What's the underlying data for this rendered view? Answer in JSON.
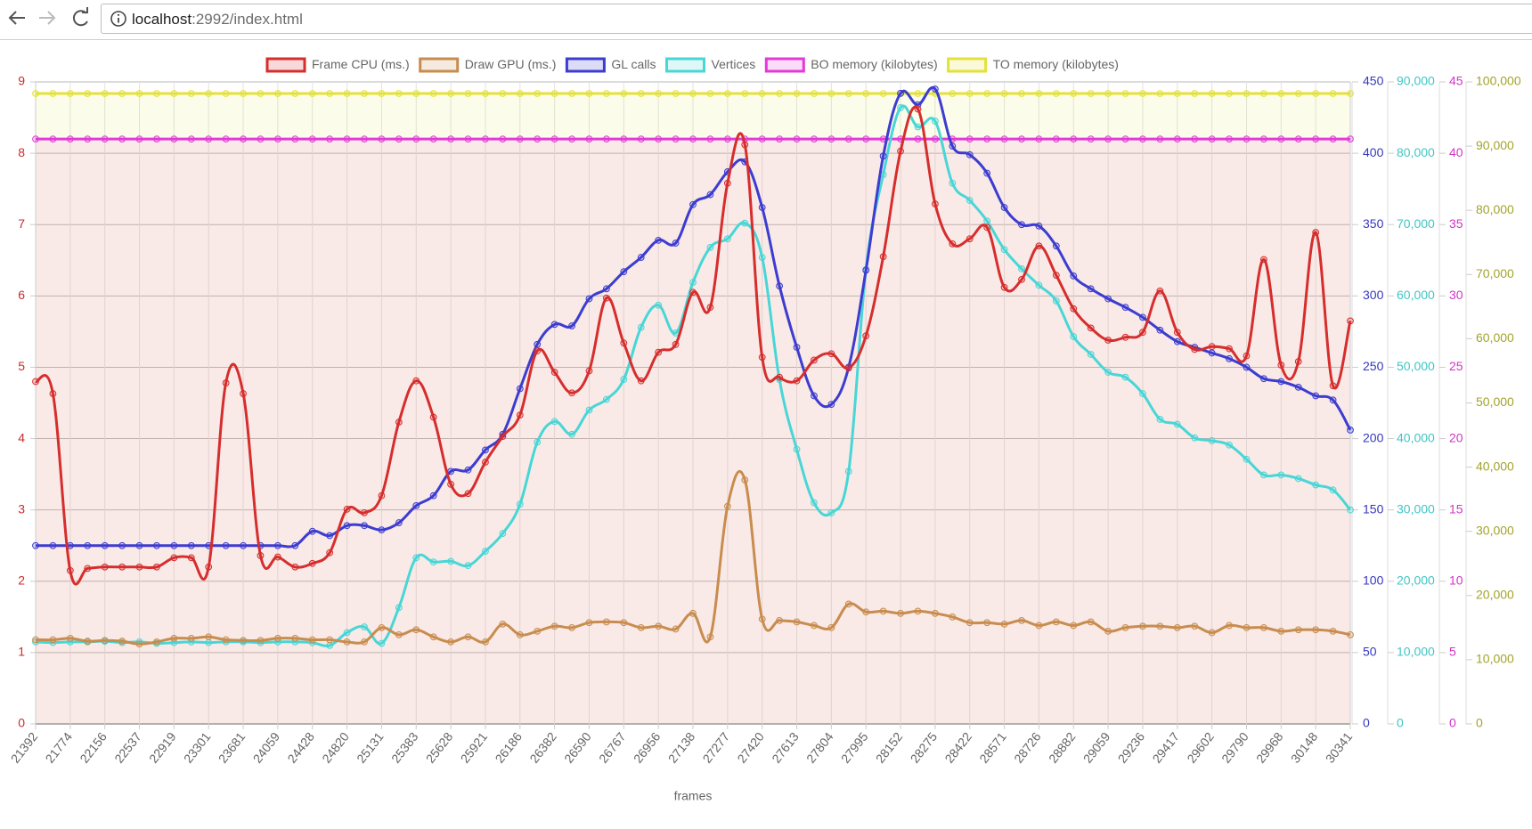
{
  "browser": {
    "host": "localhost",
    "path": ":2992/index.html"
  },
  "chart_data": {
    "type": "line",
    "x_label": "frames",
    "legend": "top",
    "grid": true,
    "categories": [
      "21392",
      null,
      "21774",
      null,
      "22156",
      null,
      "22537",
      null,
      "22919",
      null,
      "23301",
      null,
      "23681",
      null,
      "24059",
      null,
      "24428",
      null,
      "24820",
      null,
      "25131",
      null,
      "25383",
      null,
      "25628",
      null,
      "25921",
      null,
      "26186",
      null,
      "26382",
      null,
      "26590",
      null,
      "26767",
      null,
      "26956",
      null,
      "27138",
      null,
      "27277",
      null,
      "27420",
      null,
      "27613",
      null,
      "27804",
      null,
      "27995",
      null,
      "28152",
      null,
      "28275",
      null,
      "28422",
      null,
      "28571",
      null,
      "28726",
      null,
      "28882",
      null,
      "29059",
      null,
      "29236",
      null,
      "29417",
      null,
      "29602",
      null,
      "29790",
      null,
      "29968",
      null,
      "30148",
      null,
      "30341"
    ],
    "ylim": [
      0,
      9
    ],
    "yticks": [
      0,
      1,
      2,
      3,
      4,
      5,
      6,
      7,
      8,
      9
    ],
    "y2lim": [
      0,
      450
    ],
    "y2ticks": [
      0,
      50,
      100,
      150,
      200,
      250,
      300,
      350,
      400,
      450
    ],
    "y3lim": [
      0,
      90000
    ],
    "y3ticks": [
      0,
      {
        "value": 10000,
        "label": "10,000"
      },
      {
        "value": 20000,
        "label": "20,000"
      },
      {
        "value": 30000,
        "label": "30,000"
      },
      {
        "value": 40000,
        "label": "40,000"
      },
      {
        "value": 50000,
        "label": "50,000"
      },
      {
        "value": 60000,
        "label": "60,000"
      },
      {
        "value": 70000,
        "label": "70,000"
      },
      {
        "value": 80000,
        "label": "80,000"
      },
      {
        "value": 90000,
        "label": "90,000"
      }
    ],
    "y4lim": [
      0,
      45
    ],
    "y4ticks": [
      0,
      5,
      10,
      15,
      20,
      25,
      30,
      35,
      40,
      45
    ],
    "y5lim": [
      0,
      100000
    ],
    "y5ticks": [
      0,
      {
        "value": 10000,
        "label": "10,000"
      },
      {
        "value": 20000,
        "label": "20,000"
      },
      {
        "value": 30000,
        "label": "30,000"
      },
      {
        "value": 40000,
        "label": "40,000"
      },
      {
        "value": 50000,
        "label": "50,000"
      },
      {
        "value": 60000,
        "label": "60,000"
      },
      {
        "value": 70000,
        "label": "70,000"
      },
      {
        "value": 80000,
        "label": "80,000"
      },
      {
        "value": 90000,
        "label": "90,000"
      },
      {
        "value": 100000,
        "label": "100,000"
      }
    ],
    "series": [
      {
        "name": "Frame CPU (ms.)",
        "color": "#d62d2d",
        "axis": "y",
        "fill": false,
        "values": [
          4.8,
          4.63,
          2.15,
          2.18,
          2.2,
          2.2,
          2.2,
          2.2,
          2.33,
          2.33,
          2.2,
          4.78,
          4.63,
          2.36,
          2.34,
          2.2,
          2.25,
          2.4,
          3.01,
          2.96,
          3.2,
          4.23,
          4.81,
          4.3,
          3.36,
          3.23,
          3.67,
          4.03,
          4.33,
          5.23,
          4.93,
          4.64,
          4.95,
          5.97,
          5.34,
          4.81,
          5.21,
          5.32,
          6.05,
          5.84,
          7.58,
          8.12,
          5.14,
          4.86,
          4.81,
          5.1,
          5.19,
          4.99,
          5.44,
          6.55,
          8.03,
          8.62,
          7.29,
          6.73,
          6.8,
          6.96,
          6.12,
          6.23,
          6.7,
          6.29,
          5.82,
          5.55,
          5.38,
          5.42,
          5.49,
          6.07,
          5.49,
          5.25,
          5.29,
          5.26,
          5.16,
          6.51,
          5.03,
          5.08,
          6.89,
          4.74,
          5.65
        ]
      },
      {
        "name": "Draw GPU (ms.)",
        "color": "#c88c4e",
        "axis": "y",
        "fill": false,
        "values": [
          1.18,
          1.18,
          1.2,
          1.16,
          1.17,
          1.16,
          1.12,
          1.15,
          1.2,
          1.2,
          1.22,
          1.18,
          1.17,
          1.17,
          1.2,
          1.2,
          1.18,
          1.18,
          1.15,
          1.15,
          1.35,
          1.25,
          1.32,
          1.22,
          1.15,
          1.22,
          1.15,
          1.4,
          1.25,
          1.3,
          1.37,
          1.35,
          1.42,
          1.43,
          1.42,
          1.35,
          1.37,
          1.33,
          1.55,
          1.22,
          3.05,
          3.42,
          1.47,
          1.45,
          1.43,
          1.38,
          1.35,
          1.68,
          1.57,
          1.58,
          1.55,
          1.58,
          1.55,
          1.5,
          1.42,
          1.42,
          1.4,
          1.45,
          1.38,
          1.43,
          1.38,
          1.43,
          1.3,
          1.35,
          1.37,
          1.37,
          1.35,
          1.37,
          1.28,
          1.38,
          1.35,
          1.35,
          1.3,
          1.32,
          1.32,
          1.3,
          1.25
        ]
      },
      {
        "name": "GL calls",
        "color": "#3c3cd0",
        "axis": "y2",
        "fill": false,
        "values": [
          125,
          125,
          125,
          125,
          125,
          125,
          125,
          125,
          125,
          125,
          125,
          125,
          125,
          125,
          125,
          125,
          135,
          132,
          139,
          139,
          136,
          141,
          153,
          160,
          177,
          178,
          192,
          203,
          235,
          266,
          280,
          279,
          298,
          305,
          317,
          327,
          339,
          337,
          364,
          371,
          387,
          394,
          362,
          307,
          264,
          230,
          224,
          250,
          318,
          398,
          442,
          434,
          445,
          405,
          399,
          386,
          362,
          350,
          349,
          335,
          314,
          305,
          298,
          292,
          285,
          276,
          268,
          264,
          260,
          256,
          250,
          242,
          240,
          236,
          230,
          227,
          206
        ]
      },
      {
        "name": "Vertices",
        "color": "#48d6d6",
        "axis": "y3",
        "fill": false,
        "values": [
          11500,
          11400,
          11500,
          11500,
          11600,
          11400,
          11500,
          11300,
          11400,
          11500,
          11400,
          11500,
          11500,
          11400,
          11500,
          11500,
          11400,
          11000,
          12800,
          13600,
          11300,
          16300,
          23300,
          22700,
          22800,
          22200,
          24200,
          26700,
          30800,
          39500,
          42400,
          40600,
          44000,
          45500,
          48300,
          55600,
          58700,
          54800,
          61900,
          66800,
          68000,
          70200,
          65400,
          48300,
          38500,
          31000,
          29600,
          35400,
          63700,
          77000,
          86400,
          83700,
          84500,
          75800,
          73400,
          70500,
          66500,
          63800,
          61500,
          59300,
          54300,
          51800,
          49300,
          48600,
          46300,
          42700,
          42000,
          40100,
          39700,
          39100,
          37100,
          34900,
          34900,
          34400,
          33500,
          32800,
          30000
        ]
      },
      {
        "name": "BO memory (kilobytes)",
        "color": "#e23ad8",
        "axis": "y4",
        "fill": true,
        "values": [
          41,
          41,
          41,
          41,
          41,
          41,
          41,
          41,
          41,
          41,
          41,
          41,
          41,
          41,
          41,
          41,
          41,
          41,
          41,
          41,
          41,
          41,
          41,
          41,
          41,
          41,
          41,
          41,
          41,
          41,
          41,
          41,
          41,
          41,
          41,
          41,
          41,
          41,
          41,
          41,
          41,
          41,
          41,
          41,
          41,
          41,
          41,
          41,
          41,
          41,
          41,
          41,
          41,
          41,
          41,
          41,
          41,
          41,
          41,
          41,
          41,
          41,
          41,
          41,
          41,
          41,
          41,
          41,
          41,
          41,
          41,
          41,
          41,
          41,
          41,
          41,
          41
        ]
      },
      {
        "name": "TO memory (kilobytes)",
        "color": "#e3e23a",
        "axis": "y5",
        "fill": true,
        "values": [
          98200,
          98200,
          98200,
          98200,
          98200,
          98200,
          98200,
          98200,
          98200,
          98200,
          98200,
          98200,
          98200,
          98200,
          98200,
          98200,
          98200,
          98200,
          98200,
          98200,
          98200,
          98200,
          98200,
          98200,
          98200,
          98200,
          98200,
          98200,
          98200,
          98200,
          98200,
          98200,
          98200,
          98200,
          98200,
          98200,
          98200,
          98200,
          98200,
          98200,
          98200,
          98200,
          98200,
          98200,
          98200,
          98200,
          98200,
          98200,
          98200,
          98200,
          98200,
          98200,
          98200,
          98200,
          98200,
          98200,
          98200,
          98200,
          98200,
          98200,
          98200,
          98200,
          98200,
          98200,
          98200,
          98200,
          98200,
          98200,
          98200,
          98200,
          98200,
          98200,
          98200,
          98200,
          98200,
          98200,
          98200
        ]
      }
    ]
  }
}
